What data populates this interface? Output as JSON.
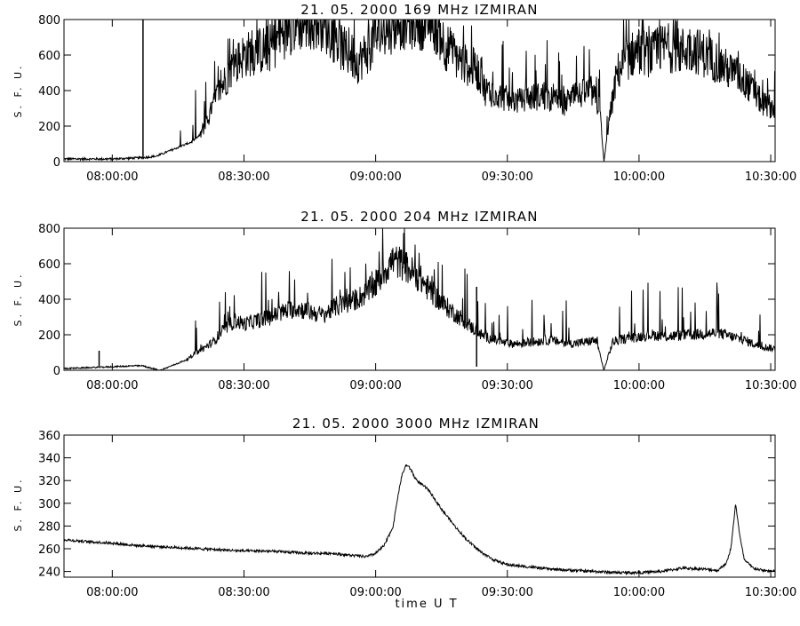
{
  "x_axis_label": "time   U T",
  "chart_data": [
    {
      "type": "line",
      "title": "21.  05.  2000    169  MHz    IZMIRAN",
      "xlabel": "",
      "ylabel": "S. F. U.",
      "xlim": [
        "07:49:00",
        "10:31:00"
      ],
      "ylim": [
        0,
        800
      ],
      "x_ticks": [
        "08:00:00",
        "08:30:00",
        "09:00:00",
        "09:30:00",
        "10:00:00",
        "10:30:00"
      ],
      "y_ticks": [
        0,
        200,
        400,
        600,
        800
      ],
      "grid": false,
      "x": [
        "07:49:00",
        "07:55:00",
        "08:00:00",
        "08:05:00",
        "08:07:00",
        "08:08:00",
        "08:10:00",
        "08:13:00",
        "08:15:00",
        "08:18:00",
        "08:20:00",
        "08:22:00",
        "08:24:00",
        "08:27:00",
        "08:30:00",
        "08:33:00",
        "08:36:00",
        "08:38:00",
        "08:40:00",
        "08:43:00",
        "08:46:00",
        "08:48:00",
        "08:50:00",
        "08:53:00",
        "08:56:00",
        "08:58:00",
        "09:00:00",
        "09:05:00",
        "09:10:00",
        "09:13:00",
        "09:16:00",
        "09:20:00",
        "09:23:00",
        "09:25:00",
        "09:28:00",
        "09:30:00",
        "09:33:00",
        "09:35:00",
        "09:38:00",
        "09:40:00",
        "09:43:00",
        "09:45:00",
        "09:47:00",
        "09:49:00",
        "09:51:00",
        "09:52:00",
        "09:53:00",
        "09:55:00",
        "09:58:00",
        "10:00:00",
        "10:03:00",
        "10:06:00",
        "10:09:00",
        "10:12:00",
        "10:15:00",
        "10:18:00",
        "10:20:00",
        "10:23:00",
        "10:26:00",
        "10:28:00",
        "10:31:00"
      ],
      "values": [
        15,
        15,
        15,
        20,
        22,
        25,
        30,
        60,
        80,
        110,
        150,
        250,
        380,
        520,
        600,
        620,
        640,
        700,
        760,
        790,
        800,
        790,
        720,
        620,
        560,
        620,
        700,
        800,
        800,
        800,
        650,
        550,
        520,
        400,
        380,
        350,
        340,
        360,
        370,
        350,
        330,
        360,
        380,
        400,
        300,
        0,
        200,
        500,
        600,
        620,
        600,
        650,
        620,
        640,
        600,
        560,
        520,
        480,
        400,
        330,
        300
      ]
    },
    {
      "type": "line",
      "title": "21.  05.  2000    204  MHz    IZMIRAN",
      "xlabel": "",
      "ylabel": "S. F. U.",
      "xlim": [
        "07:49:00",
        "10:31:00"
      ],
      "ylim": [
        0,
        800
      ],
      "x_ticks": [
        "08:00:00",
        "08:30:00",
        "09:00:00",
        "09:30:00",
        "10:00:00",
        "10:30:00"
      ],
      "y_ticks": [
        0,
        200,
        400,
        600,
        800
      ],
      "grid": false,
      "x": [
        "07:49:00",
        "07:55:00",
        "08:00:00",
        "08:05:00",
        "08:07:00",
        "08:09:00",
        "08:11:00",
        "08:14:00",
        "08:17:00",
        "08:20:00",
        "08:23:00",
        "08:25:00",
        "08:28:00",
        "08:30:00",
        "08:33:00",
        "08:36:00",
        "08:39:00",
        "08:42:00",
        "08:45:00",
        "08:48:00",
        "08:51:00",
        "08:54:00",
        "08:57:00",
        "09:00:00",
        "09:02:00",
        "09:04:00",
        "09:06:00",
        "09:08:00",
        "09:10:00",
        "09:12:00",
        "09:15:00",
        "09:18:00",
        "09:21:00",
        "09:24:00",
        "09:27:00",
        "09:30:00",
        "09:33:00",
        "09:36:00",
        "09:39:00",
        "09:42:00",
        "09:45:00",
        "09:48:00",
        "09:50:00",
        "09:51:00",
        "09:52:00",
        "09:54:00",
        "09:57:00",
        "10:00:00",
        "10:03:00",
        "10:06:00",
        "10:09:00",
        "10:12:00",
        "10:15:00",
        "10:18:00",
        "10:21:00",
        "10:24:00",
        "10:27:00",
        "10:31:00"
      ],
      "values": [
        10,
        15,
        20,
        25,
        25,
        10,
        0,
        30,
        60,
        110,
        160,
        220,
        280,
        260,
        280,
        300,
        330,
        350,
        330,
        310,
        360,
        380,
        420,
        480,
        560,
        620,
        600,
        560,
        520,
        460,
        380,
        320,
        260,
        200,
        170,
        150,
        150,
        160,
        170,
        160,
        150,
        160,
        170,
        100,
        0,
        160,
        180,
        190,
        200,
        190,
        195,
        200,
        205,
        210,
        190,
        170,
        140,
        120
      ]
    },
    {
      "type": "line",
      "title": "21.  05.  2000    3000  MHz    IZMIRAN",
      "xlabel": "",
      "ylabel": "S. F. U.",
      "xlim": [
        "07:49:00",
        "10:31:00"
      ],
      "ylim": [
        235,
        360
      ],
      "x_ticks": [
        "08:00:00",
        "08:30:00",
        "09:00:00",
        "09:30:00",
        "10:00:00",
        "10:30:00"
      ],
      "y_ticks": [
        240,
        260,
        280,
        300,
        320,
        340,
        360
      ],
      "grid": false,
      "x": [
        "07:49:00",
        "07:55:00",
        "08:00:00",
        "08:05:00",
        "08:10:00",
        "08:15:00",
        "08:20:00",
        "08:25:00",
        "08:30:00",
        "08:35:00",
        "08:40:00",
        "08:45:00",
        "08:50:00",
        "08:55:00",
        "08:58:00",
        "09:00:00",
        "09:02:00",
        "09:04:00",
        "09:05:00",
        "09:06:00",
        "09:07:00",
        "09:08:00",
        "09:09:00",
        "09:10:00",
        "09:12:00",
        "09:15:00",
        "09:18:00",
        "09:21:00",
        "09:24:00",
        "09:27:00",
        "09:30:00",
        "09:35:00",
        "09:40:00",
        "09:45:00",
        "09:50:00",
        "09:55:00",
        "10:00:00",
        "10:05:00",
        "10:10:00",
        "10:15:00",
        "10:18:00",
        "10:20:00",
        "10:21:00",
        "10:22:00",
        "10:23:00",
        "10:24:00",
        "10:26:00",
        "10:28:00",
        "10:31:00"
      ],
      "values": [
        268,
        266,
        265,
        263,
        262,
        261,
        260,
        259,
        258,
        258,
        257,
        256,
        256,
        254,
        253,
        256,
        263,
        280,
        305,
        325,
        334,
        330,
        322,
        318,
        312,
        295,
        280,
        267,
        257,
        250,
        246,
        244,
        242,
        241,
        240,
        239,
        239,
        240,
        243,
        242,
        241,
        248,
        262,
        300,
        270,
        250,
        243,
        241,
        240
      ]
    }
  ]
}
